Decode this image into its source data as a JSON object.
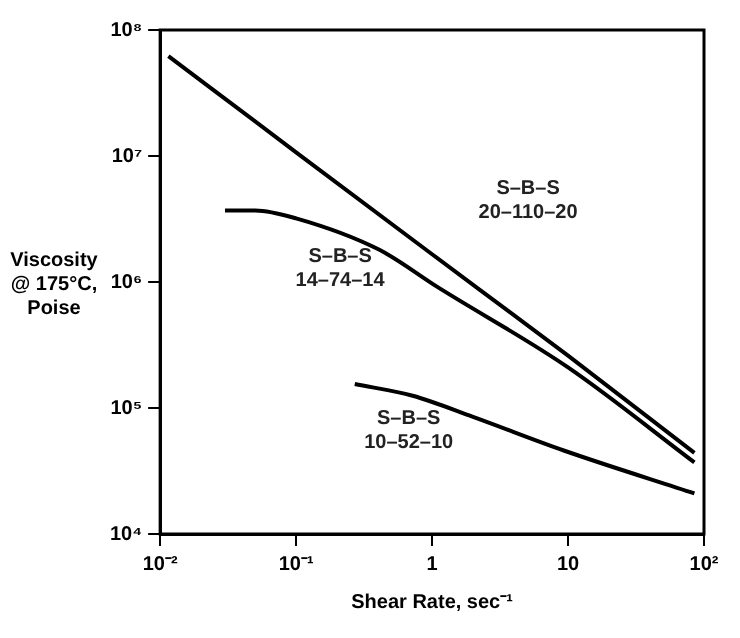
{
  "chart_data": {
    "type": "line",
    "xlabel": "Shear Rate, sec⁻¹",
    "ylabel": "Viscosity @ 175°C, Poise",
    "log": "xy",
    "xlim": [
      0.01,
      100
    ],
    "ylim": [
      10000,
      100000000
    ],
    "xticks": [
      {
        "value": 0.01,
        "label": "10⁻²"
      },
      {
        "value": 0.1,
        "label": "10⁻¹"
      },
      1,
      10,
      {
        "value": 100,
        "label": "10²"
      }
    ],
    "yticks": [
      {
        "value": 10000,
        "label": "10⁴"
      },
      {
        "value": 100000,
        "label": "10⁵"
      },
      {
        "value": 1000000,
        "label": "10⁶"
      },
      {
        "value": 10000000,
        "label": "10⁷"
      },
      {
        "value": 100000000,
        "label": "10⁸"
      }
    ],
    "grid": false,
    "legend": false,
    "marker": "none",
    "line_style": "solid",
    "series": [
      {
        "name": "S–B–S 20–110–20",
        "color": "#000000",
        "x": [
          0.0115,
          0.1,
          1,
          10,
          85
        ],
        "values": [
          62000000,
          10700000,
          1660000,
          260000,
          44000
        ]
      },
      {
        "name": "S–B–S 14–74–14",
        "color": "#000000",
        "x": [
          0.03,
          0.05,
          0.1,
          0.41,
          1.1,
          10,
          85
        ],
        "values": [
          3700000,
          3700000,
          3200000,
          1800000,
          910000,
          210000,
          37000
        ]
      },
      {
        "name": "S–B–S 10–52–10",
        "color": "#000000",
        "x": [
          0.27,
          0.72,
          2,
          9.3,
          85
        ],
        "values": [
          155000,
          125000,
          85000,
          46000,
          21000
        ]
      }
    ]
  }
}
